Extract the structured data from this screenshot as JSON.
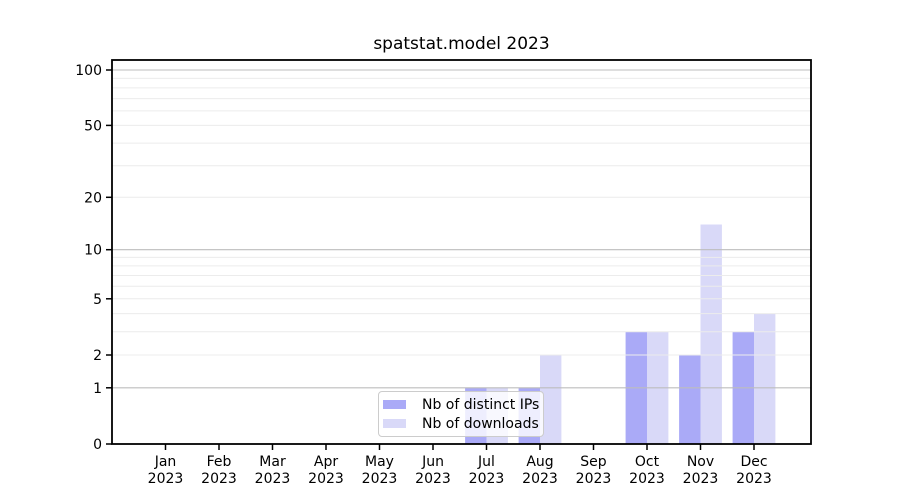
{
  "chart_data": {
    "type": "bar",
    "title": "spatstat.model 2023",
    "categories": [
      "Jan",
      "Feb",
      "Mar",
      "Apr",
      "May",
      "Jun",
      "Jul",
      "Aug",
      "Sep",
      "Oct",
      "Nov",
      "Dec"
    ],
    "x_tick_year": "2023",
    "series": [
      {
        "name": "Nb of distinct IPs",
        "color": "#aaaaf7",
        "values": [
          0,
          0,
          0,
          0,
          0,
          0,
          1,
          1,
          0,
          3,
          2,
          3
        ]
      },
      {
        "name": "Nb of downloads",
        "color": "#d9d9f8",
        "values": [
          0,
          0,
          0,
          0,
          0,
          0,
          1,
          2,
          0,
          3,
          14,
          4
        ]
      }
    ],
    "y_scale": "log1p",
    "ylim": [
      0,
      100
    ],
    "y_ticks": [
      0,
      1,
      2,
      5,
      10,
      20,
      50,
      100
    ],
    "y_minor_gridlines": [
      2,
      3,
      4,
      5,
      6,
      7,
      8,
      9,
      20,
      30,
      40,
      50,
      60,
      70,
      80,
      90
    ],
    "y_major_gridlines": [
      1,
      10,
      100
    ],
    "grid": true,
    "legend_position": "lower center",
    "colors": {
      "spine": "#000000",
      "major_grid": "#bdbdbd",
      "minor_grid": "#ececec",
      "text": "#000000"
    }
  }
}
